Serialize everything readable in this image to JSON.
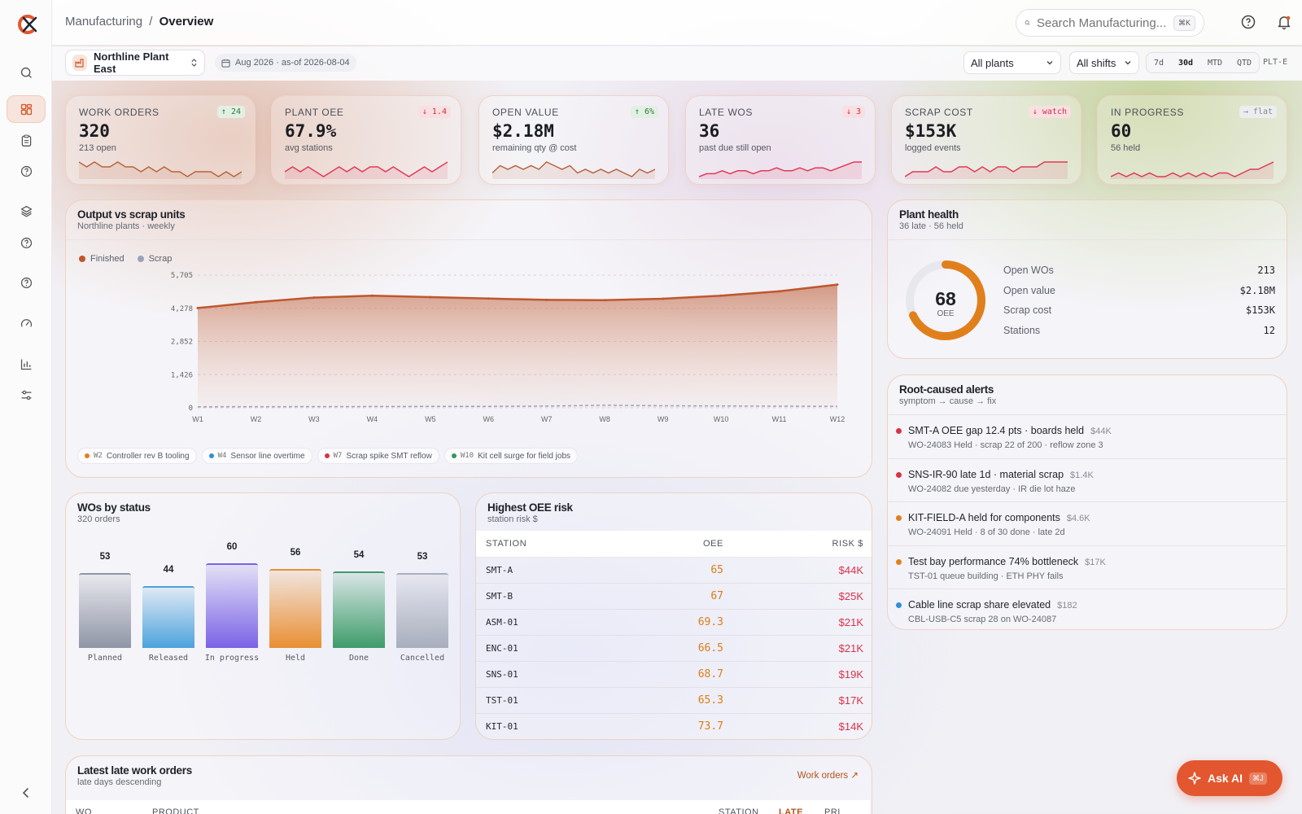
{
  "header": {
    "breadcrumb_parent": "Manufacturing",
    "breadcrumb_sep": "/",
    "breadcrumb_current": "Overview",
    "search_placeholder": "Search Manufacturing...",
    "search_shortcut": "⌘K"
  },
  "sidebar": {
    "items": [
      "search-icon",
      "dashboard-icon",
      "clipboard-icon",
      "help-icon",
      "layers-icon",
      "help-icon",
      "help-icon",
      "gauge-icon",
      "chart-icon",
      "sliders-icon"
    ],
    "active": "dashboard-icon"
  },
  "filters": {
    "plant": "Northline Plant East",
    "date_range": "Aug 2026 · as-of 2026-08-04",
    "plants_select": "All plants",
    "shifts_select": "All shifts",
    "ranges": [
      "7d",
      "30d",
      "MTD",
      "QTD"
    ],
    "active_range": "30d",
    "plant_code": "PLT-E"
  },
  "kpis": [
    {
      "label": "WORK ORDERS",
      "value": "320",
      "sub": "213 open",
      "delta": "↑ 24",
      "trend": "up",
      "spark": [
        6,
        5,
        6,
        5,
        5,
        6,
        5,
        5,
        4,
        5,
        4,
        5,
        4,
        4,
        3,
        4,
        4,
        4,
        3,
        4,
        3,
        4
      ]
    },
    {
      "label": "PLANT OEE",
      "value": "67.9%",
      "sub": "avg stations",
      "delta": "↓ 1.4",
      "trend": "down",
      "spark": [
        3,
        4,
        3,
        4,
        3,
        2,
        3,
        4,
        3,
        4,
        3,
        4,
        4,
        3,
        4,
        3,
        2,
        3,
        4,
        3,
        4,
        5
      ]
    },
    {
      "label": "OPEN VALUE",
      "value": "$2.18M",
      "sub": "remaining qty @ cost",
      "delta": "↑ 6%",
      "trend": "up",
      "spark": [
        2,
        4,
        3,
        4,
        3,
        4,
        3,
        5,
        4,
        3,
        4,
        2,
        3,
        2,
        3,
        2,
        3,
        2,
        1,
        3,
        2,
        3
      ]
    },
    {
      "label": "LATE WOS",
      "value": "36",
      "sub": "past due still open",
      "delta": "↓ 3",
      "trend": "down",
      "spark": [
        1,
        2,
        2,
        3,
        2,
        3,
        3,
        2,
        3,
        3,
        4,
        3,
        3,
        4,
        3,
        4,
        4,
        3,
        4,
        5,
        6,
        6
      ]
    },
    {
      "label": "SCRAP COST",
      "value": "$153K",
      "sub": "logged events",
      "delta": "↓ watch",
      "trend": "down",
      "spark": [
        1,
        2,
        2,
        2,
        3,
        2,
        2,
        3,
        3,
        2,
        3,
        2,
        3,
        3,
        2,
        3,
        3,
        3,
        4,
        4,
        4,
        4
      ]
    },
    {
      "label": "IN PROGRESS",
      "value": "60",
      "sub": "56 held",
      "delta": "→ flat",
      "trend": "flat",
      "spark": [
        1,
        2,
        1,
        2,
        1,
        2,
        1,
        1,
        2,
        1,
        2,
        1,
        2,
        1,
        2,
        2,
        1,
        2,
        3,
        3,
        4,
        5
      ]
    }
  ],
  "output_chart": {
    "title": "Output vs scrap units",
    "subtitle": "Northline plants · weekly",
    "legend": [
      "Finished",
      "Scrap"
    ],
    "annotations": [
      {
        "week": "W2",
        "text": "Controller rev B tooling",
        "color": "#e0801c"
      },
      {
        "week": "W4",
        "text": "Sensor line overtime",
        "color": "#2f8fd8"
      },
      {
        "week": "W7",
        "text": "Scrap spike SMT reflow",
        "color": "#d63349"
      },
      {
        "week": "W10",
        "text": "Kit cell surge for field jobs",
        "color": "#2e9a5e"
      }
    ]
  },
  "chart_data": {
    "type": "area",
    "categories": [
      "W1",
      "W2",
      "W3",
      "W4",
      "W5",
      "W6",
      "W7",
      "W8",
      "W9",
      "W10",
      "W11",
      "W12"
    ],
    "yticks": [
      "5,705",
      "4,278",
      "2,852",
      "1,426",
      "0"
    ],
    "ylim": [
      0,
      5705
    ],
    "series": [
      {
        "name": "Finished",
        "values": [
          4290,
          4540,
          4740,
          4820,
          4760,
          4700,
          4640,
          4630,
          4690,
          4820,
          5010,
          5300
        ]
      },
      {
        "name": "Scrap",
        "values": [
          45,
          48,
          52,
          55,
          60,
          62,
          75,
          110,
          88,
          80,
          70,
          65
        ]
      }
    ]
  },
  "plant_health": {
    "title": "Plant health",
    "subtitle": "36 late · 56 held",
    "oee_value": "68",
    "oee_label": "OEE",
    "oee_fraction": 0.68,
    "rows": [
      {
        "label": "Open WOs",
        "value": "213"
      },
      {
        "label": "Open value",
        "value": "$2.18M"
      },
      {
        "label": "Scrap cost",
        "value": "$153K"
      },
      {
        "label": "Stations",
        "value": "12"
      }
    ]
  },
  "alerts": {
    "title": "Root-caused alerts",
    "subtitle": "symptom → cause → fix",
    "items": [
      {
        "title": "SMT-A OEE gap 12.4 pts · boards held",
        "amount": "$44K",
        "detail": "WO-24083 Held · scrap 22 of 200 · reflow zone 3",
        "color": "#d63349"
      },
      {
        "title": "SNS-IR-90 late 1d · material scrap",
        "amount": "$1.4K",
        "detail": "WO-24082 due yesterday · IR die lot haze",
        "color": "#d63349"
      },
      {
        "title": "KIT-FIELD-A held for components",
        "amount": "$4.6K",
        "detail": "WO-24091 Held · 8 of 30 done · late 2d",
        "color": "#e0801c"
      },
      {
        "title": "Test bay performance 74% bottleneck",
        "amount": "$17K",
        "detail": "TST-01 queue building · ETH PHY fails",
        "color": "#e0801c"
      },
      {
        "title": "Cable line scrap share elevated",
        "amount": "$182",
        "detail": "CBL-USB-C5 scrap 28 on WO-24087",
        "color": "#2f8fd8"
      }
    ]
  },
  "wo_status": {
    "title": "WOs by status",
    "subtitle": "320 orders",
    "bars": [
      {
        "label": "Planned",
        "value": 53,
        "color": "#8f95a6"
      },
      {
        "label": "Released",
        "value": 44,
        "color": "#4ca2dc"
      },
      {
        "label": "In progress",
        "value": 60,
        "color": "#7a63e6"
      },
      {
        "label": "Held",
        "value": 56,
        "color": "#e98f33"
      },
      {
        "label": "Done",
        "value": 54,
        "color": "#3e9c6a"
      },
      {
        "label": "Cancelled",
        "value": 53,
        "color": "#a8aebc"
      }
    ]
  },
  "oee_risk": {
    "title": "Highest OEE risk",
    "subtitle": "station risk $",
    "columns": [
      "STATION",
      "OEE",
      "RISK $"
    ],
    "rows": [
      [
        "SMT-A",
        "65",
        "$44K"
      ],
      [
        "SMT-B",
        "67",
        "$25K"
      ],
      [
        "ASM-01",
        "69.3",
        "$21K"
      ],
      [
        "ENC-01",
        "66.5",
        "$21K"
      ],
      [
        "SNS-01",
        "68.7",
        "$19K"
      ],
      [
        "TST-01",
        "65.3",
        "$17K"
      ],
      [
        "KIT-01",
        "73.7",
        "$14K"
      ]
    ]
  },
  "late_wos": {
    "title": "Latest late work orders",
    "subtitle": "late days descending",
    "link": "Work orders ↗",
    "columns": [
      "WO",
      "PRODUCT",
      "STATION",
      "LATE",
      "PRI"
    ]
  },
  "ask_ai": {
    "label": "Ask AI",
    "shortcut": "⌘J"
  }
}
